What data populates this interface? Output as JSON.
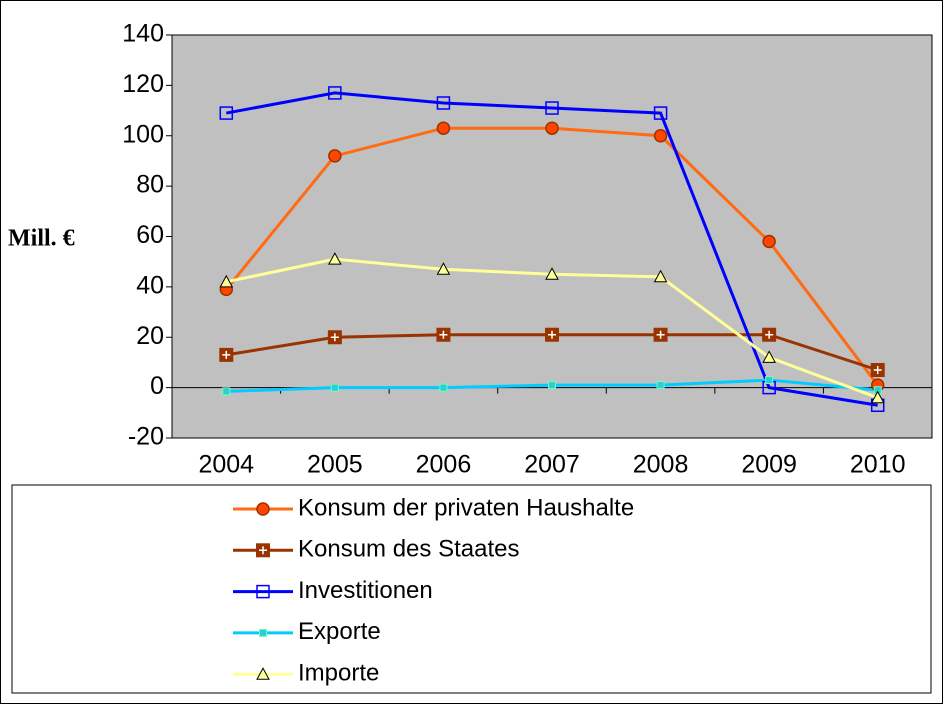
{
  "chart_data": {
    "type": "line",
    "y_label": "Mill. €",
    "categories": [
      "2004",
      "2005",
      "2006",
      "2007",
      "2008",
      "2009",
      "2010"
    ],
    "ylim": [
      -20,
      140
    ],
    "yticks": [
      -20,
      0,
      20,
      40,
      60,
      80,
      100,
      120,
      140
    ],
    "grid": false,
    "legend": "bottom",
    "series": [
      {
        "name": "Konsum der privaten Haushalte",
        "color": "#ff6a13",
        "marker": "circle",
        "values": [
          39,
          92,
          103,
          103,
          100,
          58,
          1
        ]
      },
      {
        "name": "Konsum des Staates",
        "color": "#993300",
        "marker": "plus-square",
        "values": [
          13,
          20,
          21,
          21,
          21,
          21,
          7
        ]
      },
      {
        "name": "Investitionen",
        "color": "#0000ff",
        "marker": "open-square",
        "values": [
          109,
          117,
          113,
          111,
          109,
          0,
          -7
        ]
      },
      {
        "name": "Exporte",
        "color": "#00ccff",
        "marker": "small-square",
        "values": [
          -1.5,
          0,
          0,
          1,
          1,
          3,
          -1
        ]
      },
      {
        "name": "Importe",
        "color": "#ffff99",
        "marker": "triangle",
        "values": [
          42,
          51,
          47,
          45,
          44,
          12,
          -4
        ]
      }
    ]
  }
}
